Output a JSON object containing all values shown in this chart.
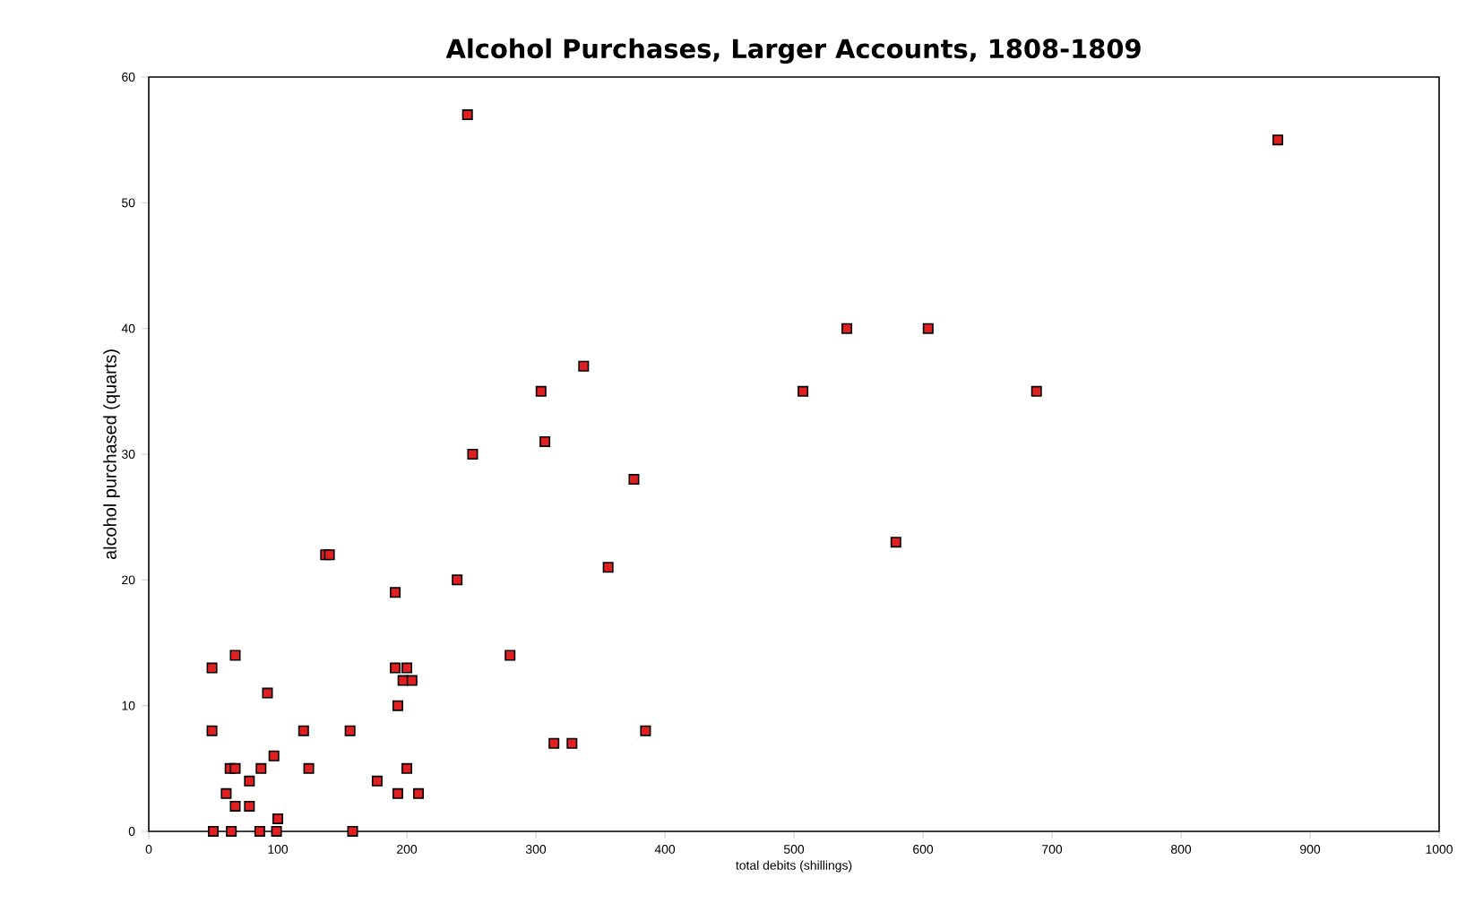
{
  "chart_data": {
    "type": "scatter",
    "title": "Alcohol Purchases, Larger Accounts, 1808-1809",
    "xlabel": "total debits (shillings)",
    "ylabel": "alcohol purchased (quarts)",
    "x": [
      49,
      49,
      67,
      63,
      67,
      60,
      67,
      78,
      78,
      50,
      64,
      86,
      99,
      100,
      87,
      92,
      97,
      120,
      124,
      137,
      140,
      156,
      158,
      177,
      191,
      191,
      200,
      197,
      204,
      193,
      200,
      193,
      209,
      239,
      280,
      314,
      328,
      356,
      385,
      247,
      251,
      304,
      307,
      337,
      376,
      875,
      541,
      604,
      507,
      688,
      579
    ],
    "series": [
      {
        "color": "#e02020",
        "values": [
          13,
          8,
          14,
          5,
          5,
          3,
          2,
          4,
          2,
          0,
          0,
          0,
          0,
          1,
          5,
          11,
          6,
          8,
          5,
          22,
          22,
          8,
          0,
          4,
          19,
          13,
          13,
          12,
          12,
          10,
          5,
          3,
          3,
          20,
          14,
          7,
          7,
          21,
          8,
          57,
          30,
          35,
          31,
          37,
          28,
          55,
          40,
          40,
          35,
          35,
          23
        ]
      }
    ],
    "xlim": [
      0,
      1000
    ],
    "xticks": [
      0,
      100,
      200,
      300,
      400,
      500,
      600,
      700,
      800,
      900,
      1000
    ],
    "ylim": [
      0,
      60
    ],
    "yticks": [
      0,
      10,
      20,
      30,
      40,
      50,
      60
    ],
    "grid": false,
    "marker": "square"
  }
}
